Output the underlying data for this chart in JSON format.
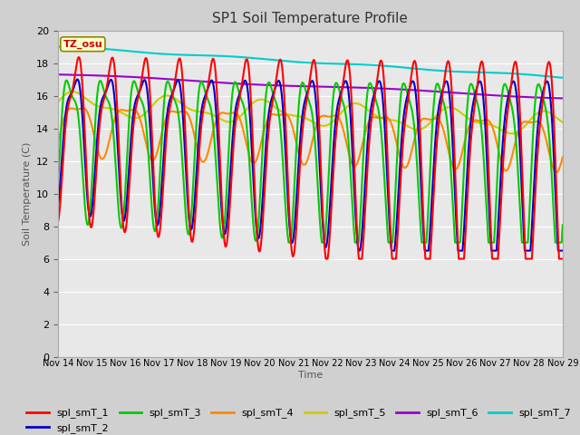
{
  "title": "SP1 Soil Temperature Profile",
  "xlabel": "Time",
  "ylabel": "Soil Temperature (C)",
  "ylim": [
    0,
    20
  ],
  "xlim": [
    0,
    15
  ],
  "tz_label": "TZ_osu",
  "series_colors": {
    "spl_smT_1": "#ff0000",
    "spl_smT_2": "#0000cc",
    "spl_smT_3": "#00cc00",
    "spl_smT_4": "#ff8800",
    "spl_smT_5": "#cccc00",
    "spl_smT_6": "#9900cc",
    "spl_smT_7": "#00cccc"
  },
  "xtick_labels": [
    "Nov 14",
    "Nov 15",
    "Nov 16",
    "Nov 17",
    "Nov 18",
    "Nov 19",
    "Nov 20",
    "Nov 21",
    "Nov 22",
    "Nov 23",
    "Nov 24",
    "Nov 25",
    "Nov 26",
    "Nov 27",
    "Nov 28",
    "Nov 29"
  ],
  "fig_bg": "#d0d0d0",
  "plot_bg": "#e8e8e8",
  "grid_color": "#ffffff",
  "figsize": [
    6.4,
    4.8
  ],
  "dpi": 100
}
